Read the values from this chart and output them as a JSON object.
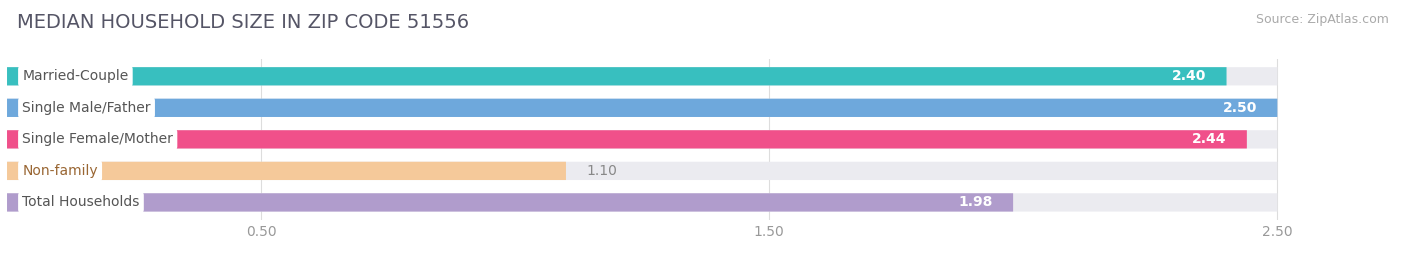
{
  "title": "MEDIAN HOUSEHOLD SIZE IN ZIP CODE 51556",
  "source": "Source: ZipAtlas.com",
  "categories": [
    "Married-Couple",
    "Single Male/Father",
    "Single Female/Mother",
    "Non-family",
    "Total Households"
  ],
  "values": [
    2.4,
    2.5,
    2.44,
    1.1,
    1.98
  ],
  "bar_colors": [
    "#38bfbf",
    "#6ea8dc",
    "#f0508a",
    "#f5c99a",
    "#b09ccc"
  ],
  "label_text_colors": [
    "#555555",
    "#555555",
    "#555555",
    "#996633",
    "#555555"
  ],
  "bar_bg_color": "#ebebf0",
  "xlim_max": 2.72,
  "bar_max": 2.5,
  "xticks": [
    0.5,
    1.5,
    2.5
  ],
  "xtick_labels": [
    "0.50",
    "1.50",
    "2.50"
  ],
  "label_fontsize": 10,
  "value_fontsize": 10,
  "title_fontsize": 14,
  "source_fontsize": 9,
  "background_color": "#ffffff",
  "title_color": "#555566",
  "source_color": "#aaaaaa",
  "grid_color": "#dddddd"
}
